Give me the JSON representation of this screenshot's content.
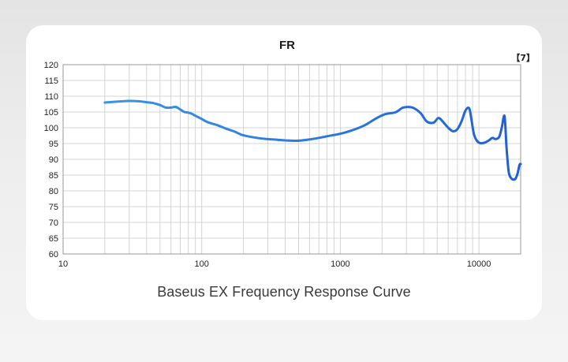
{
  "caption": "Baseus EX Frequency Response Curve",
  "corner_label": "【7】",
  "colors": {
    "curve": "#2f7ee6",
    "curve_dark": "#1f5fd6",
    "grid": "#d4d4d4",
    "frame": "#9a9a9a"
  },
  "chart_data": {
    "type": "line",
    "title": "FR",
    "xlabel": "",
    "ylabel": "",
    "x_scale": "log",
    "xlim": [
      10,
      20000
    ],
    "ylim": [
      60,
      120
    ],
    "x_ticks": [
      "10",
      "100",
      "1000",
      "10000"
    ],
    "y_ticks": [
      "120",
      "115",
      "110",
      "105",
      "100",
      "95",
      "90",
      "85",
      "80",
      "75",
      "70",
      "65",
      "60"
    ],
    "grid": true,
    "series": [
      {
        "name": "",
        "x": [
          20,
          25,
          30,
          35,
          40,
          45,
          50,
          55,
          60,
          65,
          70,
          75,
          80,
          85,
          90,
          100,
          110,
          130,
          150,
          170,
          200,
          250,
          300,
          350,
          400,
          500,
          600,
          700,
          800,
          1000,
          1200,
          1500,
          1800,
          2100,
          2500,
          2800,
          3100,
          3400,
          3800,
          4200,
          4700,
          5100,
          5500,
          6000,
          6500,
          7000,
          7500,
          8000,
          8500,
          8800,
          9200,
          9700,
          10300,
          11000,
          11800,
          12500,
          13200,
          14000,
          14600,
          15300,
          15800,
          16400,
          17100,
          17700,
          18300,
          19000,
          19600,
          20000
        ],
        "y": [
          108.0,
          108.3,
          108.5,
          108.4,
          108.1,
          107.8,
          107.2,
          106.4,
          106.4,
          106.6,
          105.8,
          105.0,
          104.8,
          104.4,
          103.8,
          102.8,
          101.8,
          100.8,
          99.7,
          98.9,
          97.6,
          96.8,
          96.4,
          96.2,
          96.0,
          95.9,
          96.3,
          96.8,
          97.3,
          98.1,
          99.1,
          100.8,
          102.9,
          104.3,
          104.9,
          106.3,
          106.6,
          106.2,
          104.6,
          102.0,
          101.6,
          103.1,
          101.9,
          100.0,
          98.9,
          99.6,
          102.1,
          105.5,
          106.2,
          103.0,
          98.0,
          95.8,
          95.1,
          95.3,
          96.0,
          96.8,
          96.4,
          97.1,
          100.0,
          103.7,
          94.0,
          86.0,
          84.0,
          83.6,
          83.8,
          85.5,
          88.2,
          88.5
        ]
      }
    ]
  }
}
